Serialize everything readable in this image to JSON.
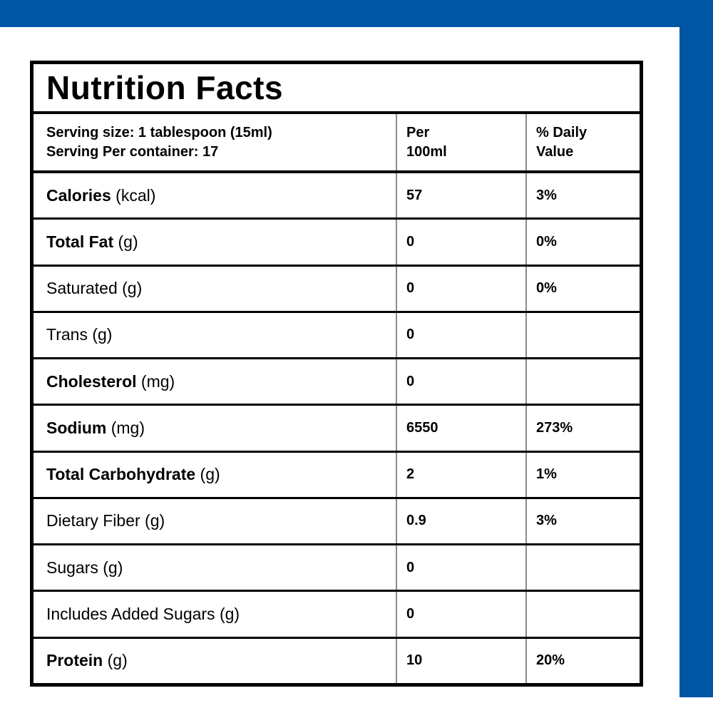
{
  "colors": {
    "accent_blue": "#0055a5"
  },
  "title": "Nutrition Facts",
  "header": {
    "serving_line1": "Serving size: 1 tablespoon (15ml)",
    "serving_line2": "Serving Per container: 17",
    "col2_line1": "Per",
    "col2_line2": "100ml",
    "col3_line1": "% Daily",
    "col3_line2": "Value"
  },
  "rows": [
    {
      "bold": "Calories",
      "rest": " (kcal)",
      "per100": "57",
      "dv": "3%"
    },
    {
      "bold": "Total Fat",
      "rest": " (g)",
      "per100": "0",
      "dv": "0%"
    },
    {
      "bold": "",
      "rest": "Saturated (g)",
      "per100": "0",
      "dv": "0%"
    },
    {
      "bold": "",
      "rest": "Trans (g)",
      "per100": "0",
      "dv": ""
    },
    {
      "bold": "Cholesterol",
      "rest": " (mg)",
      "per100": "0",
      "dv": ""
    },
    {
      "bold": "Sodium",
      "rest": " (mg)",
      "per100": "6550",
      "dv": "273%"
    },
    {
      "bold": "Total Carbohydrate",
      "rest": " (g)",
      "per100": "2",
      "dv": "1%"
    },
    {
      "bold": "",
      "rest": "Dietary Fiber (g)",
      "per100": "0.9",
      "dv": "3%"
    },
    {
      "bold": "",
      "rest": "Sugars (g)",
      "per100": "0",
      "dv": ""
    },
    {
      "bold": "",
      "rest": "Includes Added Sugars (g)",
      "per100": "0",
      "dv": ""
    },
    {
      "bold": "Protein",
      "rest": " (g)",
      "per100": "10",
      "dv": "20%"
    }
  ]
}
